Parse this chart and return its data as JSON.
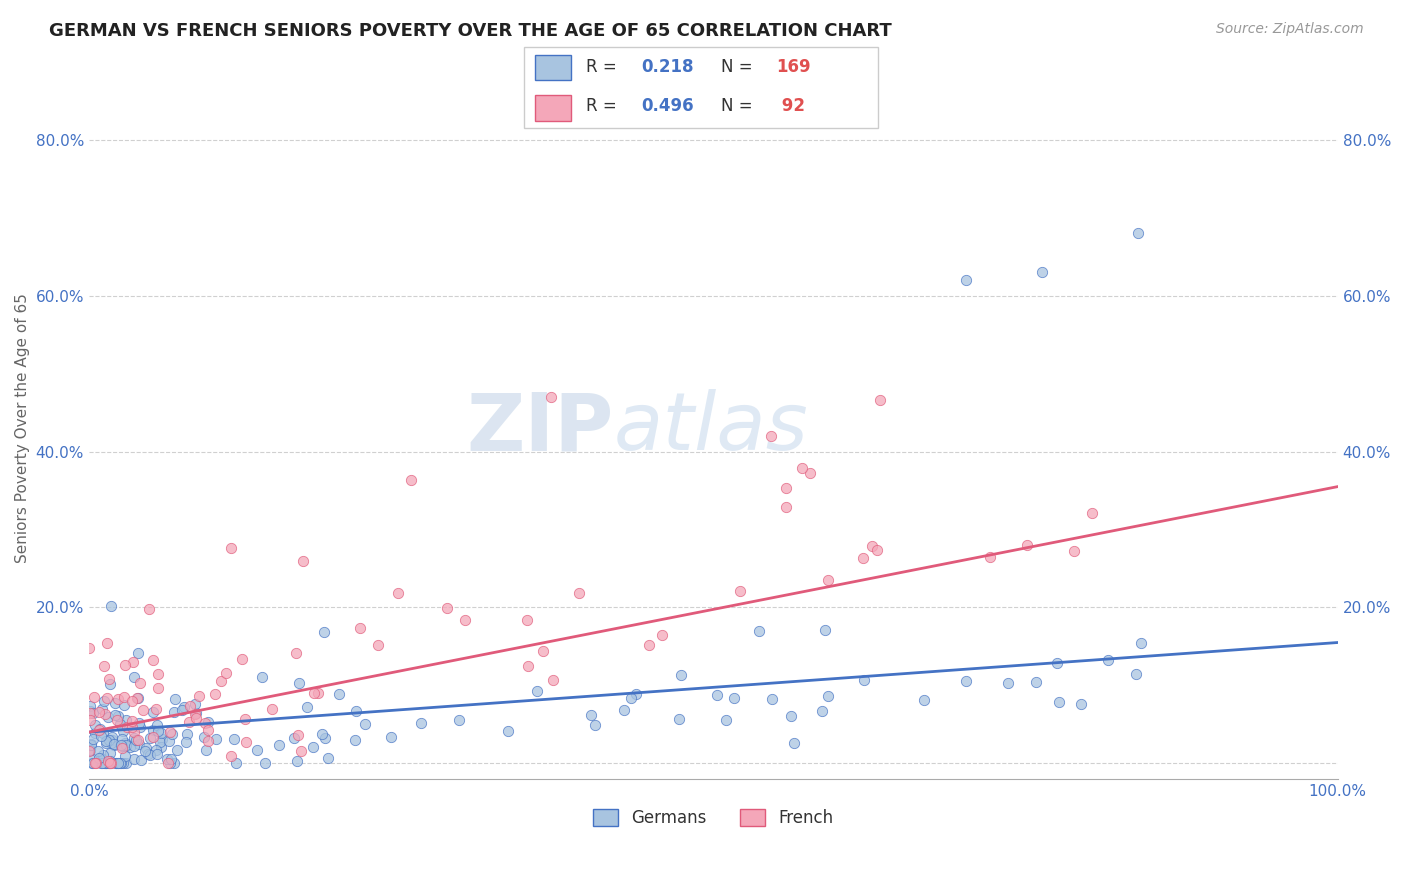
{
  "title": "GERMAN VS FRENCH SENIORS POVERTY OVER THE AGE OF 65 CORRELATION CHART",
  "source": "Source: ZipAtlas.com",
  "ylabel": "Seniors Poverty Over the Age of 65",
  "xlim": [
    0.0,
    1.0
  ],
  "ylim": [
    -0.02,
    0.88
  ],
  "ytick_positions": [
    0.0,
    0.2,
    0.4,
    0.6,
    0.8
  ],
  "yticklabels_left": [
    "",
    "20.0%",
    "40.0%",
    "60.0%",
    "80.0%"
  ],
  "yticklabels_right": [
    "",
    "20.0%",
    "40.0%",
    "60.0%",
    "80.0%"
  ],
  "german_R": 0.218,
  "german_N": 169,
  "french_R": 0.496,
  "french_N": 92,
  "german_color": "#a8c4e0",
  "french_color": "#f4a7b9",
  "german_line_color": "#4472c4",
  "french_line_color": "#e05a7a",
  "title_fontsize": 13,
  "label_fontsize": 11,
  "tick_fontsize": 11,
  "watermark_zip": "ZIP",
  "watermark_atlas": "atlas",
  "background_color": "#ffffff",
  "grid_color": "#d0d0d0",
  "german_line_start_y": 0.04,
  "german_line_end_y": 0.155,
  "french_line_start_y": 0.04,
  "french_line_end_y": 0.355
}
